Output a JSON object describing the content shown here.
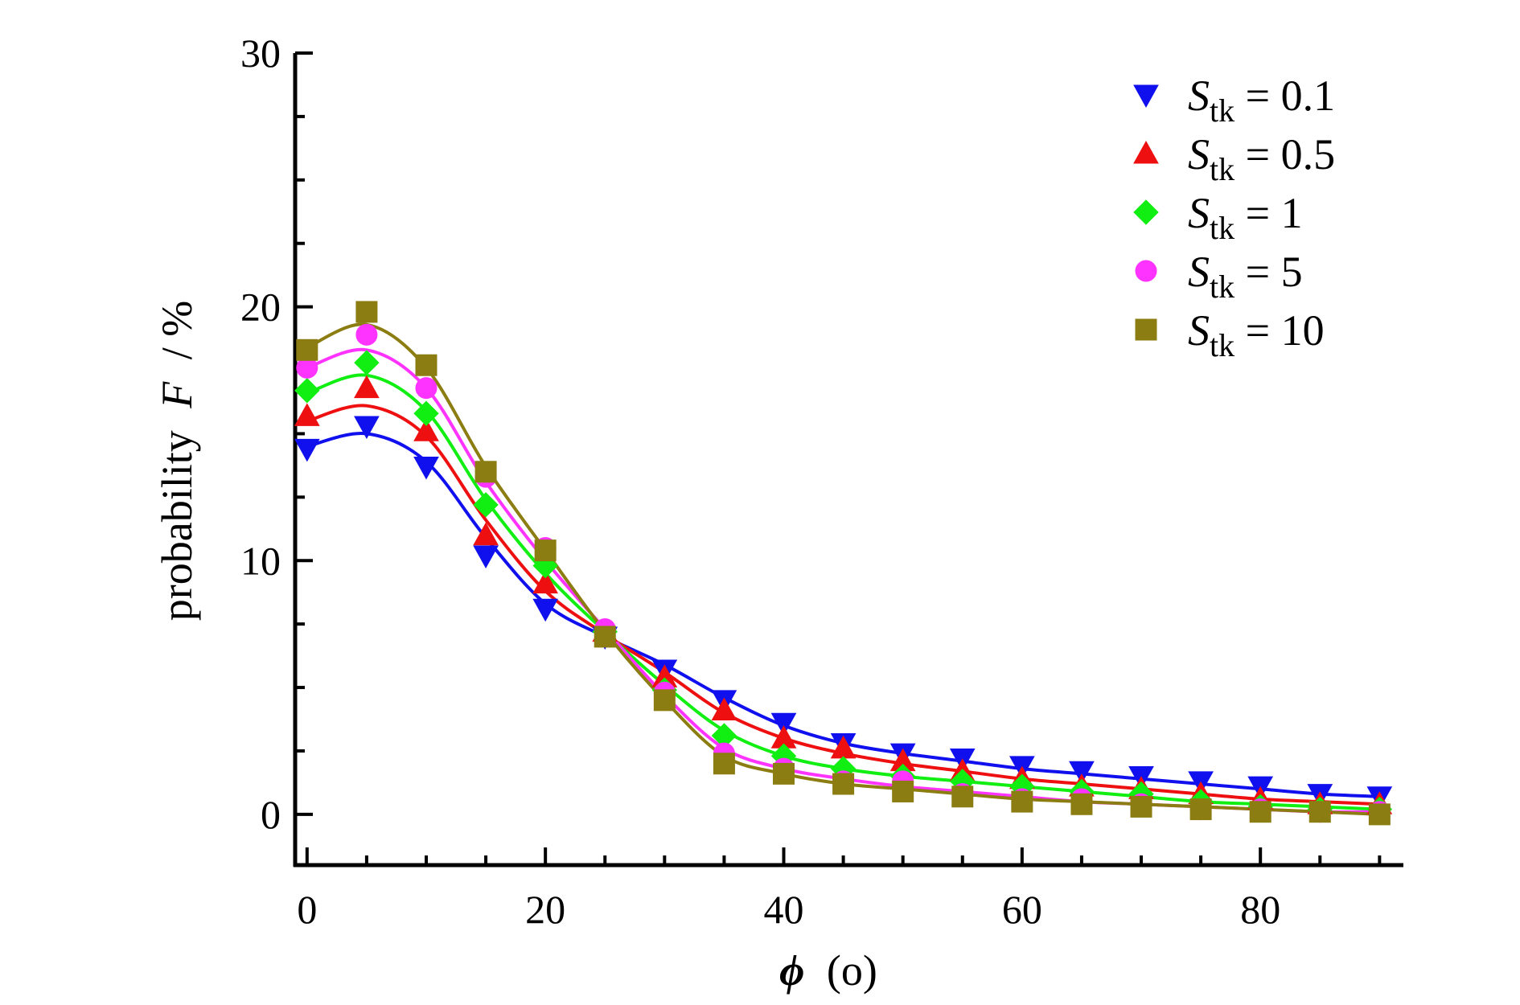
{
  "chart_data": {
    "type": "line",
    "xlabel": {
      "symbol": "ϕ",
      "unit": "(o)"
    },
    "ylabel": {
      "text": "probability",
      "symbol": "F",
      "unit": "/ %"
    },
    "xlim": [
      -1,
      92
    ],
    "ylim": [
      -2,
      30
    ],
    "xticks": [
      0,
      20,
      40,
      60,
      80
    ],
    "xtick_labels": [
      "0",
      "20",
      "40",
      "60",
      "80"
    ],
    "xminor_step": 5,
    "yticks": [
      0,
      10,
      20,
      30
    ],
    "ytick_labels": [
      "0",
      "10",
      "20",
      "30"
    ],
    "yminor_step": 2.5,
    "grid": false,
    "legend_position": "top-right",
    "legend_prefix": "S",
    "legend_subscript": "tk",
    "x": [
      0,
      5,
      10,
      15,
      20,
      25,
      30,
      35,
      40,
      45,
      50,
      55,
      60,
      65,
      70,
      75,
      80,
      85,
      90
    ],
    "series": [
      {
        "name": "0.1",
        "marker": "triangle-down",
        "color": "#1010ee",
        "values": [
          14.4,
          15.3,
          13.7,
          10.2,
          8.1,
          7.0,
          5.7,
          4.5,
          3.6,
          2.8,
          2.4,
          2.2,
          1.9,
          1.7,
          1.5,
          1.3,
          1.1,
          0.8,
          0.7
        ],
        "fit": [
          14.5,
          15.0,
          13.9,
          10.9,
          8.3,
          7.0,
          5.9,
          4.6,
          3.5,
          2.8,
          2.4,
          2.1,
          1.8,
          1.6,
          1.4,
          1.2,
          1.0,
          0.8,
          0.7
        ]
      },
      {
        "name": "0.5",
        "marker": "triangle-up",
        "color": "#ee1010",
        "values": [
          15.7,
          16.8,
          15.1,
          11.0,
          9.1,
          7.2,
          5.4,
          4.1,
          3.0,
          2.6,
          2.1,
          1.7,
          1.4,
          1.1,
          1.0,
          0.8,
          0.6,
          0.4,
          0.4
        ],
        "fit": [
          15.5,
          16.1,
          14.9,
          11.6,
          8.8,
          7.1,
          5.6,
          4.0,
          3.0,
          2.4,
          2.0,
          1.7,
          1.4,
          1.2,
          1.0,
          0.8,
          0.6,
          0.5,
          0.4
        ]
      },
      {
        "name": "1",
        "marker": "diamond",
        "color": "#11ee11",
        "values": [
          16.7,
          17.8,
          15.8,
          12.2,
          9.8,
          7.2,
          4.9,
          3.1,
          2.3,
          1.8,
          1.5,
          1.3,
          1.1,
          0.9,
          0.8,
          0.5,
          0.3,
          0.2,
          0.2
        ],
        "fit": [
          16.6,
          17.3,
          15.9,
          12.4,
          9.5,
          7.2,
          5.1,
          3.3,
          2.3,
          1.8,
          1.5,
          1.3,
          1.1,
          0.9,
          0.7,
          0.5,
          0.4,
          0.3,
          0.2
        ]
      },
      {
        "name": "5",
        "marker": "circle",
        "color": "#ff33ff",
        "values": [
          17.6,
          18.9,
          16.8,
          13.3,
          10.5,
          7.3,
          4.8,
          2.4,
          1.8,
          1.3,
          1.3,
          0.8,
          0.6,
          0.6,
          0.4,
          0.2,
          0.2,
          0.1,
          0.1
        ],
        "fit": [
          17.6,
          18.3,
          16.8,
          13.1,
          10.0,
          7.3,
          4.7,
          2.6,
          1.8,
          1.4,
          1.1,
          0.9,
          0.7,
          0.5,
          0.4,
          0.3,
          0.2,
          0.1,
          0.1
        ]
      },
      {
        "name": "10",
        "marker": "square",
        "color": "#8b7d12",
        "values": [
          18.3,
          19.8,
          17.7,
          13.5,
          10.4,
          7.0,
          4.5,
          2.0,
          1.6,
          1.2,
          0.9,
          0.7,
          0.5,
          0.4,
          0.3,
          0.2,
          0.1,
          0.1,
          0.0
        ],
        "fit": [
          18.4,
          19.3,
          17.6,
          13.7,
          10.4,
          7.2,
          4.5,
          2.3,
          1.6,
          1.2,
          1.0,
          0.8,
          0.6,
          0.5,
          0.4,
          0.3,
          0.2,
          0.1,
          0.0
        ]
      }
    ]
  }
}
